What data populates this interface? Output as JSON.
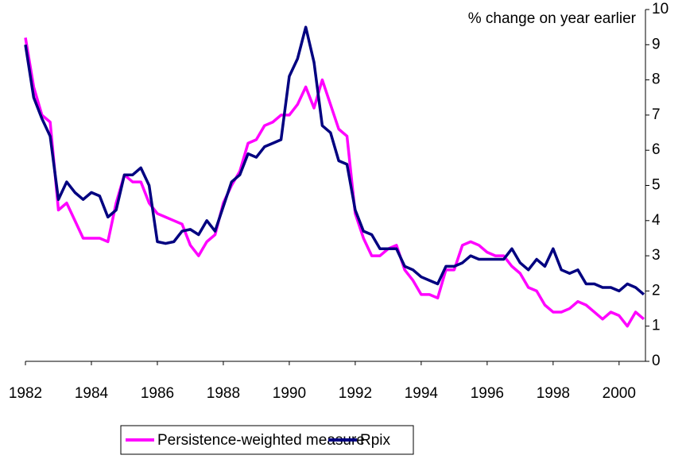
{
  "chart_data": {
    "type": "line",
    "y_axis_label": "% change on year earlier",
    "x": [
      1982,
      1982.25,
      1982.5,
      1982.75,
      1983,
      1983.25,
      1983.5,
      1983.75,
      1984,
      1984.25,
      1984.5,
      1984.75,
      1985,
      1985.25,
      1985.5,
      1985.75,
      1986,
      1986.25,
      1986.5,
      1986.75,
      1987,
      1987.25,
      1987.5,
      1987.75,
      1988,
      1988.25,
      1988.5,
      1988.75,
      1989,
      1989.25,
      1989.5,
      1989.75,
      1990,
      1990.25,
      1990.5,
      1990.75,
      1991,
      1991.25,
      1991.5,
      1991.75,
      1992,
      1992.25,
      1992.5,
      1992.75,
      1993,
      1993.25,
      1993.5,
      1993.75,
      1994,
      1994.25,
      1994.5,
      1994.75,
      1995,
      1995.25,
      1995.5,
      1995.75,
      1996,
      1996.25,
      1996.5,
      1996.75,
      1997,
      1997.25,
      1997.5,
      1997.75,
      1998,
      1998.25,
      1998.5,
      1998.75,
      1999,
      1999.25,
      1999.5,
      1999.75,
      2000,
      2000.25,
      2000.5,
      2000.75
    ],
    "series": [
      {
        "name": "Persistence-weighted measure",
        "color": "#ff00ff",
        "values": [
          9.2,
          7.8,
          7.0,
          6.8,
          4.3,
          4.5,
          4.0,
          3.5,
          3.5,
          3.5,
          3.4,
          4.5,
          5.3,
          5.1,
          5.1,
          4.5,
          4.2,
          4.1,
          4.0,
          3.9,
          3.3,
          3.0,
          3.4,
          3.6,
          4.5,
          5.0,
          5.4,
          6.2,
          6.3,
          6.7,
          6.8,
          7.0,
          7.0,
          7.3,
          7.8,
          7.2,
          8.0,
          7.3,
          6.6,
          6.4,
          4.2,
          3.5,
          3.0,
          3.0,
          3.2,
          3.3,
          2.6,
          2.3,
          1.9,
          1.9,
          1.8,
          2.6,
          2.6,
          3.3,
          3.4,
          3.3,
          3.1,
          3.0,
          3.0,
          2.7,
          2.5,
          2.1,
          2.0,
          1.6,
          1.4,
          1.4,
          1.5,
          1.7,
          1.6,
          1.4,
          1.2,
          1.4,
          1.3,
          1.0,
          1.4,
          1.2
        ]
      },
      {
        "name": "Rpix",
        "color": "#000080",
        "values": [
          9.0,
          7.5,
          6.9,
          6.4,
          4.6,
          5.1,
          4.8,
          4.6,
          4.8,
          4.7,
          4.1,
          4.3,
          5.3,
          5.3,
          5.5,
          5.0,
          3.4,
          3.35,
          3.4,
          3.7,
          3.75,
          3.6,
          4.0,
          3.7,
          4.4,
          5.1,
          5.3,
          5.9,
          5.8,
          6.1,
          6.2,
          6.3,
          8.1,
          8.6,
          9.5,
          8.5,
          6.7,
          6.5,
          5.7,
          5.6,
          4.3,
          3.7,
          3.6,
          3.2,
          3.2,
          3.2,
          2.7,
          2.6,
          2.4,
          2.3,
          2.2,
          2.7,
          2.7,
          2.8,
          3.0,
          2.9,
          2.9,
          2.9,
          2.9,
          3.2,
          2.8,
          2.6,
          2.9,
          2.7,
          3.2,
          2.6,
          2.5,
          2.6,
          2.2,
          2.2,
          2.1,
          2.1,
          2.0,
          2.2,
          2.1,
          1.9
        ]
      }
    ],
    "xlim": [
      1982,
      2000.8
    ],
    "xticks": [
      1982,
      1984,
      1986,
      1988,
      1990,
      1992,
      1994,
      1996,
      1998,
      2000
    ],
    "ylim": [
      0,
      10
    ],
    "yticks": [
      0,
      1,
      2,
      3,
      4,
      5,
      6,
      7,
      8,
      9,
      10
    ],
    "legend": "bottom"
  }
}
